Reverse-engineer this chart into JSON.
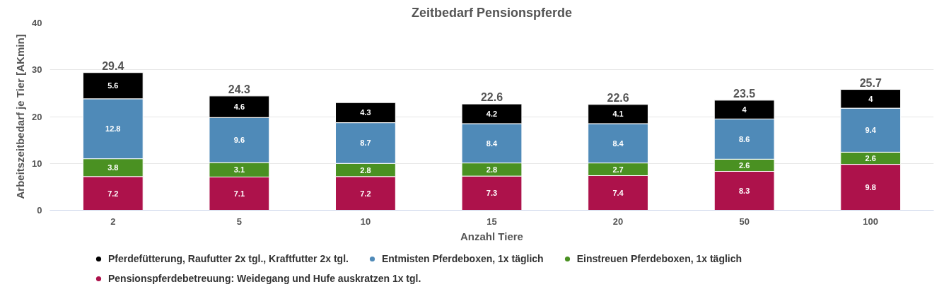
{
  "chart_data": {
    "type": "bar",
    "title": "Zeitbedarf Pensionspferde",
    "xlabel": "Anzahl Tiere",
    "ylabel": "Arbeitszeitbedarf je Tier [AKmin]",
    "categories": [
      "2",
      "5",
      "10",
      "15",
      "20",
      "50",
      "100"
    ],
    "stacked": true,
    "series": [
      {
        "name": "Pensionspferdebetreuung: Weidegang und Hufe auskratzen 1x tgl.",
        "color": "#ad124b",
        "values": [
          7.2,
          7.1,
          7.2,
          7.3,
          7.4,
          8.3,
          9.8
        ]
      },
      {
        "name": "Einstreuen Pferdeboxen, 1x täglich",
        "color": "#4a9122",
        "values": [
          3.8,
          3.1,
          2.8,
          2.8,
          2.7,
          2.6,
          2.6
        ]
      },
      {
        "name": "Entmisten Pferdeboxen, 1x täglich",
        "color": "#4f8ab8",
        "values": [
          12.8,
          9.6,
          8.7,
          8.4,
          8.4,
          8.6,
          9.4
        ]
      },
      {
        "name": "Pferdefütterung, Raufutter 2x tgl., Kraftfutter 2x tgl.",
        "color": "#000000",
        "values": [
          5.6,
          4.6,
          4.3,
          4.2,
          4.1,
          4,
          4
        ]
      }
    ],
    "totals": [
      "29.4",
      "24.3",
      null,
      "22.6",
      "22.6",
      "23.5",
      "25.7"
    ],
    "data_labels": true,
    "ylim": [
      0,
      40
    ],
    "yticks": [
      0,
      10,
      20,
      30,
      40
    ],
    "grid": "y",
    "legend": "bottom"
  }
}
